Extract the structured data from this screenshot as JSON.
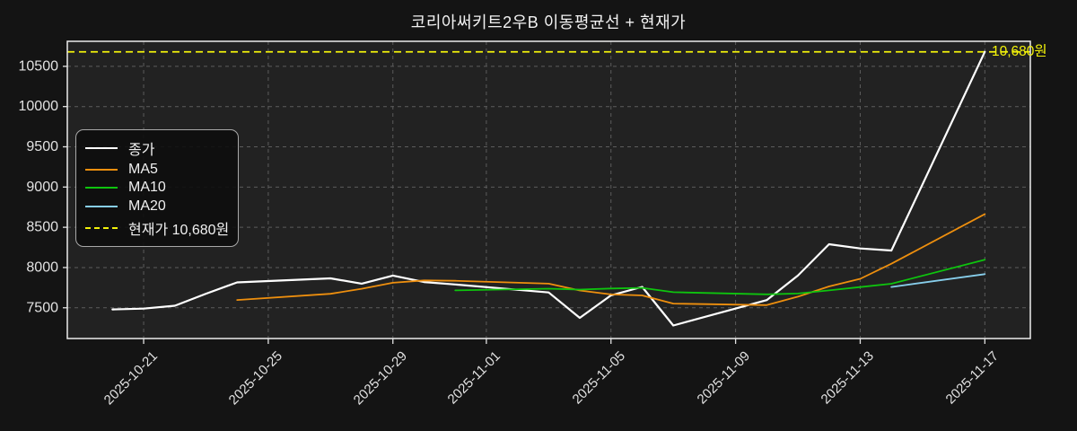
{
  "title": "코리아써키트2우B 이동평균선 + 현재가",
  "chart_data": {
    "type": "line",
    "title": "코리아써키트2우B 이동평균선 + 현재가",
    "xlabel": "",
    "ylabel": "",
    "grid": true,
    "legend_position": "upper-left",
    "background": {
      "figure": "#141414",
      "axes": "#222222",
      "grid_color": "#5c5c5c",
      "spine_color": "#ededed",
      "tick_color": "#e2e2e2"
    },
    "x": [
      "2025-10-20",
      "2025-10-21",
      "2025-10-22",
      "2025-10-23",
      "2025-10-24",
      "2025-10-27",
      "2025-10-28",
      "2025-10-29",
      "2025-10-30",
      "2025-10-31",
      "2025-11-03",
      "2025-11-04",
      "2025-11-05",
      "2025-11-06",
      "2025-11-07",
      "2025-11-10",
      "2025-11-11",
      "2025-11-12",
      "2025-11-13",
      "2025-11-14",
      "2025-11-17"
    ],
    "series": [
      {
        "id": "close",
        "name": "종가",
        "color": "#ffffff",
        "width": 2.2,
        "dash": null,
        "start_index": 0,
        "values": [
          7480,
          7490,
          7525,
          7675,
          7815,
          7865,
          7800,
          7900,
          7820,
          7790,
          7690,
          7375,
          7655,
          7760,
          7280,
          7595,
          7900,
          8290,
          8237,
          8211,
          10680
        ]
      },
      {
        "id": "ma5",
        "name": "MA5",
        "color": "#ee8f0e",
        "width": 1.8,
        "dash": null,
        "start_index": 4,
        "values": [
          7597,
          7674,
          7736,
          7811,
          7840,
          7835,
          7800,
          7715,
          7666,
          7654,
          7552,
          7533,
          7638,
          7765,
          7860,
          8047,
          8664
        ]
      },
      {
        "id": "ma10",
        "name": "MA10",
        "color": "#0ec40e",
        "width": 1.8,
        "dash": null,
        "start_index": 9,
        "values": [
          7716,
          7737,
          7726,
          7739,
          7747,
          7694,
          7667,
          7677,
          7716,
          7757,
          7799,
          8098
        ]
      },
      {
        "id": "ma20",
        "name": "MA20",
        "color": "#87ceeb",
        "width": 1.8,
        "dash": null,
        "start_index": 19,
        "values": [
          7758,
          7918
        ]
      }
    ],
    "hline": {
      "value": 10680,
      "label": "10,680원",
      "color": "#f2f20a",
      "dash": "8 5",
      "width": 1.7
    },
    "legend": [
      {
        "label": "종가",
        "color": "#ffffff",
        "dashed": false
      },
      {
        "label": "MA5",
        "color": "#ee8f0e",
        "dashed": false
      },
      {
        "label": "MA10",
        "color": "#0ec40e",
        "dashed": false
      },
      {
        "label": "MA20",
        "color": "#87ceeb",
        "dashed": false
      },
      {
        "label": "현재가 10,680원",
        "color": "#f2f20a",
        "dashed": true
      }
    ],
    "x_ticks": [
      "2025-10-21",
      "2025-10-25",
      "2025-10-29",
      "2025-11-01",
      "2025-11-05",
      "2025-11-09",
      "2025-11-13",
      "2025-11-17"
    ],
    "y_ticks": [
      7500,
      8000,
      8500,
      9000,
      9500,
      10000,
      10500
    ],
    "ylim": [
      7118,
      10811
    ],
    "xlim_offset_days": [
      -1.45,
      29.46
    ]
  }
}
